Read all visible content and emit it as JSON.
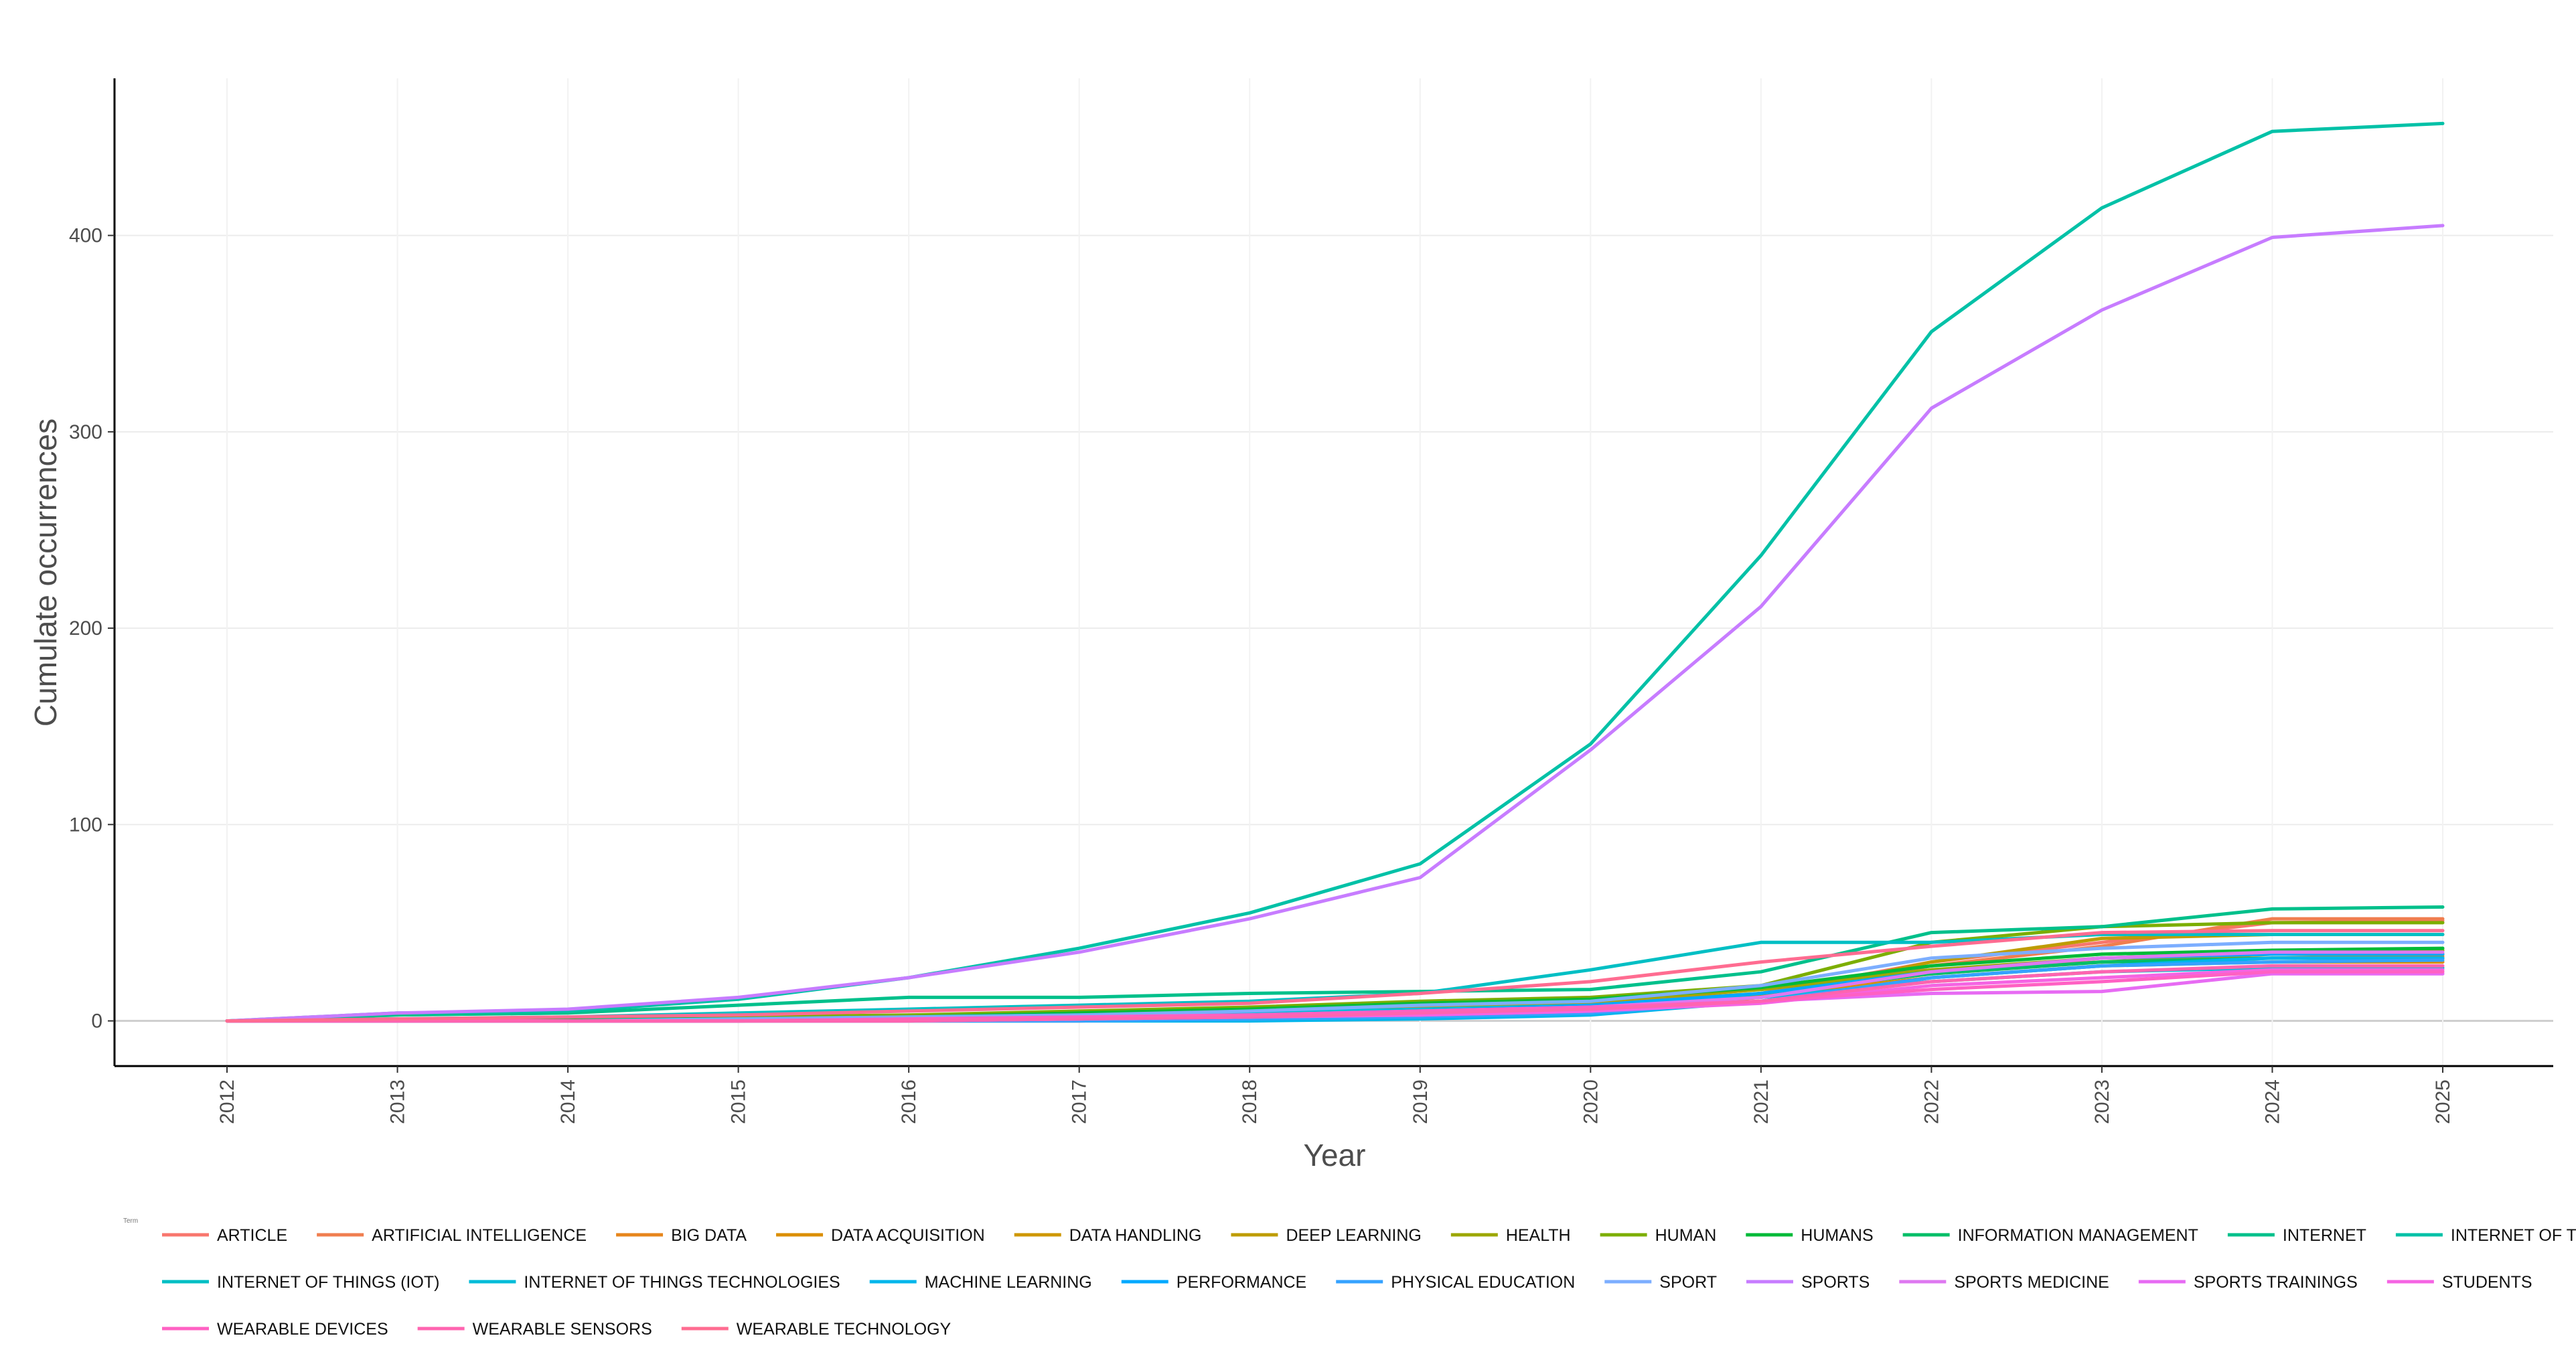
{
  "chart_data": {
    "type": "line",
    "title": "",
    "xlabel": "Year",
    "ylabel": "Cumulate occurrences",
    "legend_title": "Term",
    "legend_position": "bottom",
    "grid": true,
    "xlim": [
      2012,
      2025
    ],
    "ylim": [
      -23,
      480
    ],
    "yticks": [
      0,
      100,
      200,
      300,
      400
    ],
    "x": [
      2012,
      2013,
      2014,
      2015,
      2016,
      2017,
      2018,
      2019,
      2020,
      2021,
      2022,
      2023,
      2024,
      2025
    ],
    "series": [
      {
        "name": "ARTICLE",
        "color": "#F8766D",
        "values": [
          0,
          0,
          0,
          0,
          1,
          2,
          3,
          5,
          7,
          14,
          30,
          40,
          50,
          51
        ]
      },
      {
        "name": "ARTIFICIAL INTELLIGENCE",
        "color": "#F07E4F",
        "values": [
          0,
          0,
          0,
          0,
          0,
          0,
          1,
          2,
          5,
          12,
          28,
          38,
          52,
          52
        ]
      },
      {
        "name": "BIG DATA",
        "color": "#E7861B",
        "values": [
          0,
          0,
          0,
          1,
          2,
          3,
          5,
          7,
          10,
          16,
          26,
          30,
          32,
          33
        ]
      },
      {
        "name": "DATA ACQUISITION",
        "color": "#DB8E00",
        "values": [
          0,
          0,
          0,
          0,
          1,
          2,
          3,
          6,
          8,
          13,
          22,
          28,
          30,
          30
        ]
      },
      {
        "name": "DATA HANDLING",
        "color": "#CE9700",
        "values": [
          0,
          0,
          0,
          0,
          1,
          2,
          4,
          6,
          9,
          14,
          24,
          30,
          34,
          34
        ]
      },
      {
        "name": "DEEP LEARNING",
        "color": "#BE9C00",
        "values": [
          0,
          0,
          0,
          0,
          0,
          1,
          2,
          4,
          6,
          12,
          30,
          42,
          44,
          44
        ]
      },
      {
        "name": "HEALTH",
        "color": "#9CA700",
        "values": [
          0,
          0,
          0,
          1,
          2,
          3,
          5,
          8,
          10,
          16,
          26,
          32,
          35,
          36
        ]
      },
      {
        "name": "HUMAN",
        "color": "#7CAE00",
        "values": [
          0,
          1,
          1,
          2,
          3,
          5,
          7,
          10,
          12,
          18,
          40,
          48,
          50,
          50
        ]
      },
      {
        "name": "HUMANS",
        "color": "#00BA38",
        "values": [
          0,
          0,
          1,
          1,
          2,
          4,
          6,
          9,
          11,
          17,
          28,
          34,
          36,
          37
        ]
      },
      {
        "name": "INFORMATION MANAGEMENT",
        "color": "#00BE67",
        "values": [
          0,
          0,
          0,
          0,
          1,
          2,
          3,
          5,
          7,
          14,
          24,
          30,
          32,
          32
        ]
      },
      {
        "name": "INTERNET",
        "color": "#00C08B",
        "values": [
          0,
          3,
          4,
          8,
          12,
          12,
          14,
          15,
          16,
          25,
          45,
          48,
          57,
          58
        ]
      },
      {
        "name": "INTERNET OF THINGS",
        "color": "#00C1A7",
        "values": [
          0,
          4,
          5,
          11,
          22,
          37,
          55,
          80,
          141,
          237,
          351,
          414,
          453,
          457
        ]
      },
      {
        "name": "INTERNET OF THINGS (IOT)",
        "color": "#00BFC4",
        "values": [
          0,
          1,
          2,
          4,
          6,
          8,
          10,
          14,
          26,
          40,
          40,
          44,
          44,
          44
        ]
      },
      {
        "name": "INTERNET OF THINGS TECHNOLOGIES",
        "color": "#00BCD8",
        "values": [
          0,
          0,
          0,
          1,
          2,
          3,
          4,
          6,
          8,
          12,
          20,
          25,
          27,
          27
        ]
      },
      {
        "name": "MACHINE LEARNING",
        "color": "#00B6EB",
        "values": [
          0,
          0,
          0,
          0,
          0,
          0,
          0,
          1,
          3,
          10,
          22,
          28,
          32,
          32
        ]
      },
      {
        "name": "PERFORMANCE",
        "color": "#00A9FF",
        "values": [
          0,
          0,
          0,
          0,
          1,
          2,
          3,
          5,
          8,
          14,
          25,
          32,
          34,
          34
        ]
      },
      {
        "name": "PHYSICAL EDUCATION",
        "color": "#35A2FF",
        "values": [
          0,
          0,
          0,
          0,
          0,
          0,
          1,
          2,
          4,
          10,
          22,
          28,
          30,
          31
        ]
      },
      {
        "name": "SPORT",
        "color": "#7CAEFF",
        "values": [
          0,
          0,
          0,
          1,
          2,
          3,
          5,
          8,
          10,
          18,
          32,
          37,
          40,
          40
        ]
      },
      {
        "name": "SPORTS",
        "color": "#C77CFF",
        "values": [
          0,
          4,
          6,
          12,
          22,
          35,
          52,
          73,
          138,
          211,
          312,
          362,
          399,
          405
        ]
      },
      {
        "name": "SPORTS MEDICINE",
        "color": "#DE78F0",
        "values": [
          0,
          0,
          0,
          0,
          1,
          2,
          3,
          5,
          7,
          12,
          25,
          32,
          35,
          35
        ]
      },
      {
        "name": "SPORTS TRAININGS",
        "color": "#E76BF3",
        "values": [
          0,
          0,
          0,
          0,
          0,
          1,
          2,
          3,
          5,
          10,
          14,
          15,
          24,
          24
        ]
      },
      {
        "name": "STUDENTS",
        "color": "#F564E3",
        "values": [
          0,
          0,
          0,
          0,
          0,
          1,
          2,
          3,
          5,
          9,
          18,
          22,
          26,
          26
        ]
      },
      {
        "name": "WEARABLE DEVICES",
        "color": "#FF61C3",
        "values": [
          0,
          0,
          0,
          0,
          1,
          2,
          3,
          5,
          7,
          10,
          16,
          20,
          25,
          25
        ]
      },
      {
        "name": "WEARABLE SENSORS",
        "color": "#FF64B0",
        "values": [
          0,
          0,
          0,
          0,
          0,
          1,
          2,
          4,
          6,
          10,
          20,
          25,
          28,
          28
        ]
      },
      {
        "name": "WEARABLE TECHNOLOGY",
        "color": "#FF6C91",
        "values": [
          0,
          1,
          2,
          3,
          5,
          7,
          9,
          14,
          20,
          30,
          38,
          45,
          46,
          46
        ]
      }
    ]
  }
}
